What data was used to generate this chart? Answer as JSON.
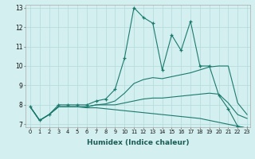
{
  "xlabel": "Humidex (Indice chaleur)",
  "bg_color": "#d4efef",
  "grid_color": "#b8dcdc",
  "line_color": "#1a7a6e",
  "xlim": [
    -0.5,
    23.3
  ],
  "ylim": [
    6.85,
    13.15
  ],
  "yticks": [
    7,
    8,
    9,
    10,
    11,
    12,
    13
  ],
  "xticks": [
    0,
    1,
    2,
    3,
    4,
    5,
    6,
    7,
    8,
    9,
    10,
    11,
    12,
    13,
    14,
    15,
    16,
    17,
    18,
    19,
    20,
    21,
    22,
    23
  ],
  "lines": [
    {
      "x": [
        0,
        1,
        2,
        3,
        4,
        5,
        6,
        7,
        8,
        9,
        10,
        11,
        12,
        13,
        14,
        15,
        16,
        17,
        18,
        19,
        20,
        21,
        22,
        23
      ],
      "y": [
        7.9,
        7.2,
        7.5,
        8.0,
        8.0,
        8.0,
        8.0,
        8.2,
        8.3,
        8.8,
        10.4,
        13.0,
        12.5,
        12.2,
        9.8,
        11.6,
        10.8,
        12.3,
        10.0,
        10.0,
        8.5,
        7.8,
        6.9,
        6.8
      ],
      "marker": "+"
    },
    {
      "x": [
        0,
        1,
        2,
        3,
        4,
        5,
        6,
        7,
        8,
        9,
        10,
        11,
        12,
        13,
        14,
        15,
        16,
        17,
        18,
        19,
        20,
        21,
        22,
        23
      ],
      "y": [
        7.9,
        7.2,
        7.5,
        7.9,
        7.9,
        7.9,
        7.9,
        8.0,
        8.05,
        8.2,
        8.6,
        9.1,
        9.3,
        9.4,
        9.35,
        9.45,
        9.55,
        9.65,
        9.8,
        9.95,
        10.0,
        10.0,
        8.1,
        7.5
      ],
      "marker": null
    },
    {
      "x": [
        0,
        1,
        2,
        3,
        4,
        5,
        6,
        7,
        8,
        9,
        10,
        11,
        12,
        13,
        14,
        15,
        16,
        17,
        18,
        19,
        20,
        21,
        22,
        23
      ],
      "y": [
        7.9,
        7.2,
        7.5,
        7.9,
        7.9,
        7.9,
        7.9,
        8.0,
        8.0,
        8.0,
        8.1,
        8.2,
        8.3,
        8.35,
        8.35,
        8.4,
        8.45,
        8.5,
        8.55,
        8.6,
        8.55,
        8.1,
        7.5,
        7.3
      ],
      "marker": null
    },
    {
      "x": [
        0,
        1,
        2,
        3,
        4,
        5,
        6,
        7,
        8,
        9,
        10,
        11,
        12,
        13,
        14,
        15,
        16,
        17,
        18,
        19,
        20,
        21,
        22,
        23
      ],
      "y": [
        7.9,
        7.2,
        7.5,
        7.9,
        7.9,
        7.9,
        7.85,
        7.85,
        7.8,
        7.75,
        7.7,
        7.65,
        7.6,
        7.55,
        7.5,
        7.45,
        7.4,
        7.35,
        7.3,
        7.2,
        7.1,
        7.0,
        6.9,
        6.8
      ],
      "marker": null
    }
  ]
}
